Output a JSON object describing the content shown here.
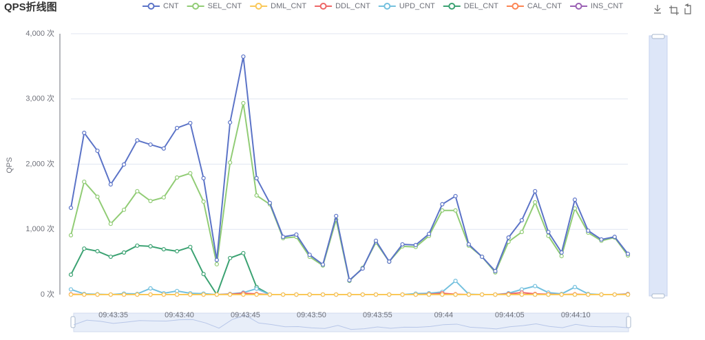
{
  "chart_data": {
    "type": "line",
    "title": "QPS折线图",
    "y_label": "QPS",
    "categories": [
      null,
      null,
      null,
      "09:43:35",
      null,
      null,
      null,
      null,
      "09:43:40",
      null,
      null,
      null,
      null,
      "09:43:45",
      null,
      null,
      null,
      null,
      "09:43:50",
      null,
      null,
      null,
      null,
      "09:43:55",
      null,
      null,
      null,
      null,
      "09:44",
      null,
      null,
      null,
      null,
      "09:44:05",
      null,
      null,
      null,
      null,
      "09:44:10",
      null,
      null,
      null,
      null
    ],
    "ylim": [
      0,
      4000
    ],
    "yticks": [
      {
        "value": 0,
        "label": "0 次"
      },
      {
        "value": 1000,
        "label": "1,000 次"
      },
      {
        "value": 2000,
        "label": "2,000 次"
      },
      {
        "value": 3000,
        "label": "3,000 次"
      },
      {
        "value": 4000,
        "label": "4,000 次"
      }
    ],
    "grid": true,
    "legend": "top",
    "series": [
      {
        "name": "CNT",
        "color": "#5b73c7",
        "values": [
          1330,
          2480,
          2205,
          1690,
          1995,
          2365,
          2300,
          2240,
          2555,
          2630,
          1785,
          530,
          2640,
          3650,
          1785,
          1405,
          885,
          920,
          610,
          460,
          1205,
          220,
          400,
          825,
          505,
          770,
          760,
          930,
          1385,
          1510,
          770,
          580,
          360,
          875,
          1140,
          1585,
          960,
          645,
          1455,
          980,
          845,
          885,
          625
        ]
      },
      {
        "name": "SEL_CNT",
        "color": "#91cc75",
        "values": [
          910,
          1730,
          1500,
          1085,
          1300,
          1585,
          1435,
          1490,
          1795,
          1860,
          1425,
          465,
          2025,
          2935,
          1520,
          1385,
          865,
          885,
          580,
          445,
          1150,
          210,
          410,
          800,
          505,
          740,
          730,
          900,
          1290,
          1290,
          750,
          580,
          340,
          810,
          960,
          1415,
          900,
          590,
          1320,
          950,
          825,
          875,
          600
        ]
      },
      {
        "name": "DML_CNT",
        "color": "#fac858",
        "values": [
          0,
          0,
          0,
          0,
          0,
          0,
          0,
          0,
          0,
          0,
          0,
          0,
          0,
          0,
          0,
          0,
          0,
          0,
          0,
          0,
          0,
          0,
          0,
          0,
          0,
          0,
          0,
          0,
          0,
          0,
          0,
          0,
          0,
          0,
          0,
          0,
          0,
          0,
          0,
          0,
          0,
          0,
          0
        ]
      },
      {
        "name": "DDL_CNT",
        "color": "#ee6666",
        "values": [
          5,
          0,
          0,
          0,
          0,
          0,
          0,
          0,
          0,
          0,
          0,
          0,
          5,
          20,
          10,
          0,
          0,
          0,
          0,
          0,
          0,
          0,
          0,
          0,
          0,
          0,
          0,
          5,
          20,
          5,
          0,
          0,
          0,
          10,
          30,
          10,
          5,
          0,
          5,
          0,
          0,
          0,
          5
        ]
      },
      {
        "name": "UPD_CNT",
        "color": "#73c0de",
        "values": [
          80,
          10,
          5,
          0,
          15,
          10,
          95,
          20,
          55,
          20,
          15,
          0,
          10,
          30,
          90,
          0,
          0,
          0,
          0,
          0,
          0,
          0,
          0,
          0,
          0,
          0,
          15,
          20,
          40,
          210,
          5,
          0,
          0,
          20,
          80,
          130,
          30,
          10,
          115,
          10,
          0,
          0,
          10
        ]
      },
      {
        "name": "DEL_CNT",
        "color": "#3ba272",
        "values": [
          305,
          705,
          665,
          580,
          645,
          750,
          740,
          695,
          665,
          730,
          315,
          0,
          560,
          635,
          115,
          0,
          0,
          0,
          0,
          0,
          0,
          0,
          0,
          0,
          0,
          0,
          0,
          0,
          0,
          0,
          0,
          0,
          0,
          0,
          0,
          0,
          0,
          0,
          0,
          0,
          0,
          0,
          0
        ]
      },
      {
        "name": "CAL_CNT",
        "color": "#fc8452",
        "values": [
          0,
          0,
          0,
          0,
          0,
          0,
          0,
          0,
          0,
          0,
          0,
          0,
          0,
          0,
          0,
          0,
          0,
          0,
          0,
          0,
          0,
          0,
          0,
          0,
          0,
          0,
          0,
          0,
          0,
          0,
          0,
          0,
          0,
          0,
          0,
          0,
          0,
          0,
          0,
          0,
          0,
          0,
          0
        ]
      },
      {
        "name": "INS_CNT",
        "color": "#9a60b4",
        "values": [
          0,
          0,
          0,
          0,
          0,
          0,
          0,
          0,
          0,
          0,
          0,
          0,
          0,
          0,
          0,
          0,
          0,
          0,
          0,
          0,
          0,
          0,
          0,
          0,
          0,
          0,
          0,
          0,
          0,
          0,
          0,
          0,
          0,
          0,
          0,
          0,
          0,
          0,
          0,
          0,
          0,
          0,
          0
        ]
      }
    ]
  }
}
